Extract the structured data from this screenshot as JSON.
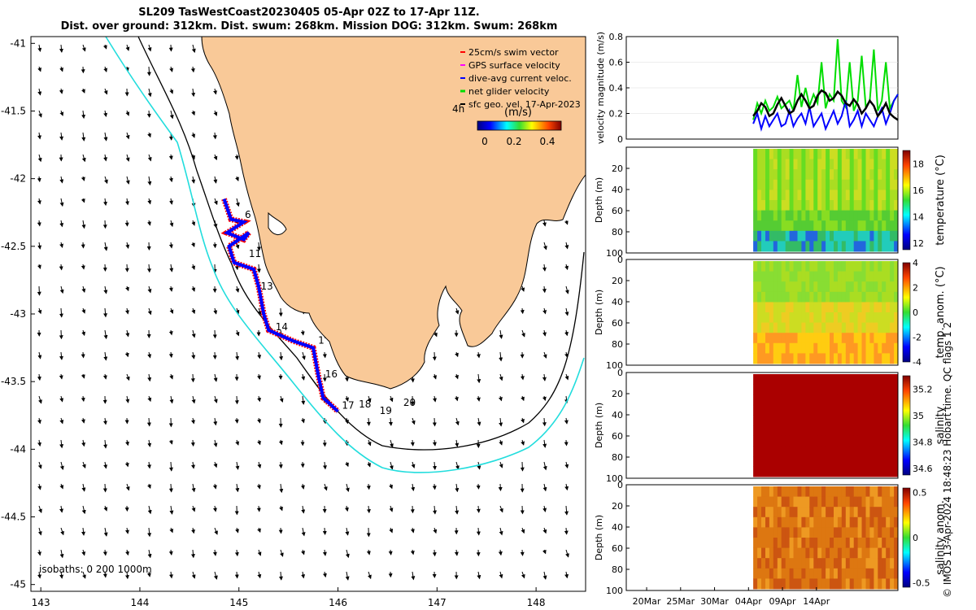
{
  "header": {
    "title_line1": "SL209 TasWestCoast20230405 05-Apr 02Z to 17-Apr 11Z.",
    "title_line2": "Dist. over ground: 312km. Dist. swum: 268km. Mission DOG: 312km. Swum: 268km"
  },
  "copyright": "© IMOS 13-Apr-2024 18:48:23 Hobart time. QC flags 1  2",
  "colors": {
    "land": "#f9c998",
    "swim_vector": "#ff0000",
    "gps_velocity": "#ff00ff",
    "dive_avg": "#0000ff",
    "net_velocity": "#00dd00",
    "sfc_geo": "#000000",
    "isobath_200": "#000000",
    "isobath_1000": "#22dddd"
  },
  "chart_data": [
    {
      "id": "map",
      "type": "scatter",
      "title": "",
      "xlim": [
        142.9,
        148.5
      ],
      "ylim": [
        -45.05,
        -40.95
      ],
      "xticks": [
        "143",
        "144",
        "145",
        "146",
        "147",
        "148"
      ],
      "yticks": [
        "-41",
        "-41.5",
        "-42",
        "-42.5",
        "-43",
        "-43.5",
        "-44",
        "-44.5",
        "-45"
      ],
      "legend": {
        "placement": "top-right",
        "entries": [
          "25cm/s swim vector",
          "GPS surface velocity",
          "dive-avg current veloc.",
          "net glider velocity",
          "sfc geo. vel. 17-Apr-2023"
        ]
      },
      "colorbar": {
        "label": "(m/s)",
        "duration_label": "4h",
        "ticks": [
          "0",
          "0.2",
          "0.4"
        ],
        "range": [
          0,
          0.5
        ]
      },
      "isobaths_label": "isobaths: 0   200  1000m",
      "track": [
        [
          144.85,
          -42.15
        ],
        [
          144.92,
          -42.3
        ],
        [
          145.05,
          -42.32
        ],
        [
          144.88,
          -42.4
        ],
        [
          145.05,
          -42.45
        ],
        [
          145.1,
          -42.4
        ],
        [
          144.9,
          -42.5
        ],
        [
          144.95,
          -42.62
        ],
        [
          145.15,
          -42.67
        ],
        [
          145.2,
          -42.8
        ],
        [
          145.25,
          -43.0
        ],
        [
          145.3,
          -43.12
        ],
        [
          145.55,
          -43.2
        ],
        [
          145.75,
          -43.25
        ],
        [
          145.8,
          -43.45
        ],
        [
          145.85,
          -43.62
        ],
        [
          146.0,
          -43.72
        ]
      ],
      "day_labels": [
        {
          "text": "6",
          "lon": 145.06,
          "lat": -42.29
        },
        {
          "text": "11",
          "lon": 145.1,
          "lat": -42.58
        },
        {
          "text": "13",
          "lon": 145.22,
          "lat": -42.82
        },
        {
          "text": "14",
          "lon": 145.37,
          "lat": -43.12
        },
        {
          "text": "1",
          "lon": 145.8,
          "lat": -43.22
        },
        {
          "text": "16",
          "lon": 145.87,
          "lat": -43.47
        },
        {
          "text": "17",
          "lon": 146.04,
          "lat": -43.7
        },
        {
          "text": "18",
          "lon": 146.21,
          "lat": -43.69
        },
        {
          "text": "19",
          "lon": 146.42,
          "lat": -43.74
        },
        {
          "text": "20",
          "lon": 146.66,
          "lat": -43.68
        }
      ]
    },
    {
      "id": "velocity",
      "type": "line",
      "ylabel": "velocity magnitude (m/s)",
      "ylim": [
        0,
        0.8
      ],
      "yticks": [
        "0",
        "0.2",
        "0.4",
        "0.6",
        "0.8"
      ],
      "x_start_day": 0,
      "series": [
        {
          "color": "#00dd00",
          "values": [
            0.15,
            0.28,
            0.2,
            0.3,
            0.22,
            0.25,
            0.33,
            0.24,
            0.27,
            0.3,
            0.22,
            0.5,
            0.25,
            0.4,
            0.26,
            0.35,
            0.28,
            0.6,
            0.24,
            0.35,
            0.3,
            0.78,
            0.3,
            0.25,
            0.6,
            0.22,
            0.3,
            0.65,
            0.25,
            0.3,
            0.7,
            0.22,
            0.3,
            0.6,
            0.24,
            0.3,
            0.35
          ]
        },
        {
          "color": "#0000ff",
          "values": [
            0.12,
            0.2,
            0.08,
            0.18,
            0.1,
            0.15,
            0.2,
            0.1,
            0.12,
            0.22,
            0.1,
            0.16,
            0.2,
            0.12,
            0.25,
            0.1,
            0.15,
            0.2,
            0.08,
            0.15,
            0.22,
            0.12,
            0.18,
            0.3,
            0.1,
            0.15,
            0.22,
            0.1,
            0.2,
            0.15,
            0.1,
            0.18,
            0.24,
            0.12,
            0.2,
            0.3,
            0.35
          ]
        },
        {
          "color": "#000000",
          "values": [
            0.18,
            0.22,
            0.28,
            0.25,
            0.18,
            0.2,
            0.27,
            0.32,
            0.26,
            0.2,
            0.22,
            0.3,
            0.35,
            0.3,
            0.24,
            0.26,
            0.34,
            0.38,
            0.36,
            0.3,
            0.32,
            0.37,
            0.34,
            0.28,
            0.26,
            0.31,
            0.27,
            0.2,
            0.24,
            0.3,
            0.26,
            0.18,
            0.22,
            0.28,
            0.2,
            0.17,
            0.15
          ]
        }
      ]
    },
    {
      "id": "temperature",
      "type": "heatmap",
      "ylabel": "Depth (m)",
      "colorbar_label": "temperature (°C)",
      "ylim": [
        0,
        100
      ],
      "yticks": [
        "20",
        "40",
        "60",
        "80",
        "100"
      ],
      "cticks": [
        "12",
        "14",
        "16",
        "18"
      ],
      "crange": [
        11.5,
        19
      ]
    },
    {
      "id": "temp_anom",
      "type": "heatmap",
      "ylabel": "Depth (m)",
      "colorbar_label": "temp. anom. (°C)",
      "ylim": [
        0,
        100
      ],
      "yticks": [
        "0",
        "20",
        "40",
        "60",
        "80",
        "100"
      ],
      "cticks": [
        "-4",
        "-2",
        "0",
        "2",
        "4"
      ],
      "crange": [
        -4,
        4
      ]
    },
    {
      "id": "salinity",
      "type": "heatmap",
      "ylabel": "Depth (m)",
      "colorbar_label": "salinity",
      "ylim": [
        0,
        100
      ],
      "yticks": [
        "0",
        "20",
        "40",
        "60",
        "80",
        "100"
      ],
      "cticks": [
        "34.6",
        "34.8",
        "35",
        "35.2"
      ],
      "crange": [
        34.55,
        35.3
      ]
    },
    {
      "id": "sal_anom",
      "type": "heatmap",
      "ylabel": "Depth (m)",
      "colorbar_label": "salinity anom.",
      "ylim": [
        0,
        100
      ],
      "yticks": [
        "0",
        "20",
        "40",
        "60",
        "80",
        "100"
      ],
      "cticks": [
        "-0.5",
        "0",
        "0.5"
      ],
      "crange": [
        -0.55,
        0.55
      ],
      "xticks": [
        "20Mar",
        "25Mar",
        "30Mar",
        "04Apr",
        "09Apr",
        "14Apr"
      ]
    }
  ]
}
